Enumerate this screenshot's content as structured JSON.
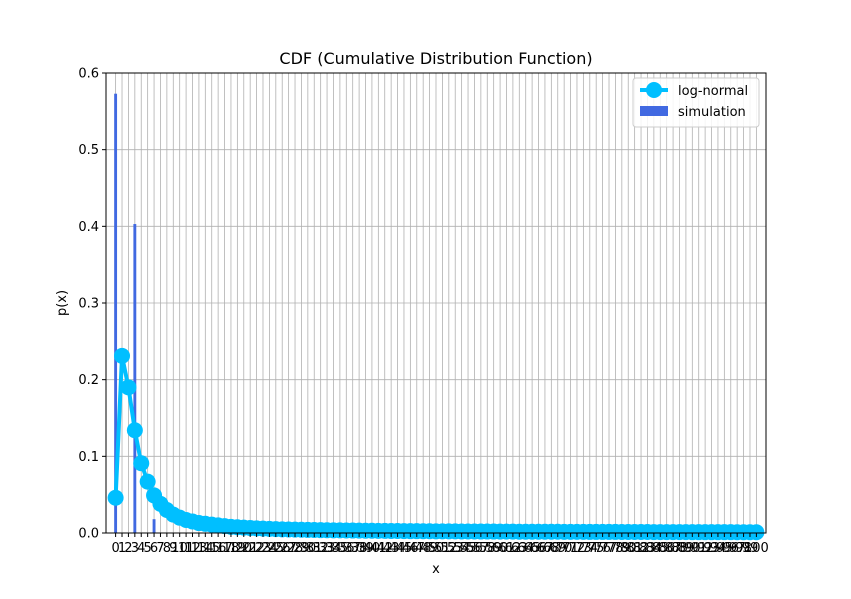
{
  "chart_data": {
    "type": "bar+line",
    "title": "CDF (Cumulative Distribution Function)",
    "xlabel": "x",
    "ylabel": "p(x)",
    "xlim": [
      -1.5,
      101.5
    ],
    "ylim": [
      0,
      0.6
    ],
    "yticks": [
      0.0,
      0.1,
      0.2,
      0.3,
      0.4,
      0.5,
      0.6
    ],
    "x_tick_labels": [
      "0",
      "1",
      "2",
      "3",
      "4",
      "5",
      "6",
      "7",
      "8",
      "9",
      "10",
      "11",
      "12",
      "13",
      "14",
      "15",
      "16",
      "17",
      "18",
      "19",
      "20",
      "21",
      "22",
      "23",
      "24",
      "25",
      "26",
      "27",
      "28",
      "29",
      "30",
      "31",
      "32",
      "33",
      "34",
      "35",
      "36",
      "37",
      "38",
      "39",
      "40",
      "41",
      "42",
      "43",
      "44",
      "45",
      "46",
      "47",
      "48",
      "49",
      "50",
      "51",
      "52",
      "53",
      "54",
      "55",
      "56",
      "57",
      "58",
      "59",
      "60",
      "61",
      "62",
      "63",
      "64",
      "65",
      "66",
      "67",
      "68",
      "69",
      "70",
      "71",
      "72",
      "73",
      "74",
      "75",
      "76",
      "77",
      "78",
      "79",
      "80",
      "81",
      "82",
      "83",
      "84",
      "85",
      "86",
      "87",
      "88",
      "89",
      "90",
      "91",
      "92",
      "93",
      "94",
      "95",
      "96",
      "97",
      "98",
      "99",
      "100"
    ],
    "grid": true,
    "legend_position": "top-right",
    "series": [
      {
        "name": "log-normal",
        "kind": "line",
        "color": "#00bfff",
        "marker": "circle",
        "x": [
          0,
          1,
          2,
          3,
          4,
          5,
          6,
          7,
          8,
          9,
          10,
          11,
          12,
          13,
          14,
          15,
          16,
          17,
          18,
          19,
          20,
          21,
          22,
          23,
          24,
          25,
          26,
          27,
          28,
          29,
          30,
          31,
          32,
          33,
          34,
          35,
          36,
          37,
          38,
          39,
          40,
          41,
          42,
          43,
          44,
          45,
          46,
          47,
          48,
          49,
          50,
          51,
          52,
          53,
          54,
          55,
          56,
          57,
          58,
          59,
          60,
          61,
          62,
          63,
          64,
          65,
          66,
          67,
          68,
          69,
          70,
          71,
          72,
          73,
          74,
          75,
          76,
          77,
          78,
          79,
          80,
          81,
          82,
          83,
          84,
          85,
          86,
          87,
          88,
          89,
          90,
          91,
          92,
          93,
          94,
          95,
          96,
          97,
          98,
          99,
          100
        ],
        "values": [
          0.046,
          0.231,
          0.19,
          0.134,
          0.091,
          0.067,
          0.049,
          0.038,
          0.03,
          0.024,
          0.02,
          0.017,
          0.015,
          0.013,
          0.012,
          0.011,
          0.01,
          0.009,
          0.008,
          0.0075,
          0.007,
          0.0065,
          0.006,
          0.0057,
          0.0054,
          0.0051,
          0.0048,
          0.0046,
          0.0044,
          0.0042,
          0.004,
          0.0039,
          0.0037,
          0.0036,
          0.0035,
          0.0034,
          0.0033,
          0.0032,
          0.0031,
          0.003,
          0.0029,
          0.0028,
          0.0027,
          0.0026,
          0.0026,
          0.0025,
          0.0024,
          0.0024,
          0.0023,
          0.0023,
          0.0022,
          0.0022,
          0.0021,
          0.0021,
          0.002,
          0.002,
          0.002,
          0.0019,
          0.0019,
          0.0019,
          0.0018,
          0.0018,
          0.0018,
          0.0017,
          0.0017,
          0.0017,
          0.0016,
          0.0016,
          0.0016,
          0.0016,
          0.0015,
          0.0015,
          0.0015,
          0.0015,
          0.0014,
          0.0014,
          0.0014,
          0.0014,
          0.0014,
          0.0013,
          0.0013,
          0.0013,
          0.0013,
          0.0013,
          0.0012,
          0.0012,
          0.0012,
          0.0012,
          0.0012,
          0.0012,
          0.0011,
          0.0011,
          0.0011,
          0.0011,
          0.0011,
          0.0011,
          0.0011,
          0.001,
          0.001,
          0.001,
          0.001
        ]
      },
      {
        "name": "simulation",
        "kind": "bar",
        "color": "#4169e1",
        "x": [
          0,
          3,
          6
        ],
        "values": [
          0.573,
          0.403,
          0.018
        ]
      }
    ]
  }
}
